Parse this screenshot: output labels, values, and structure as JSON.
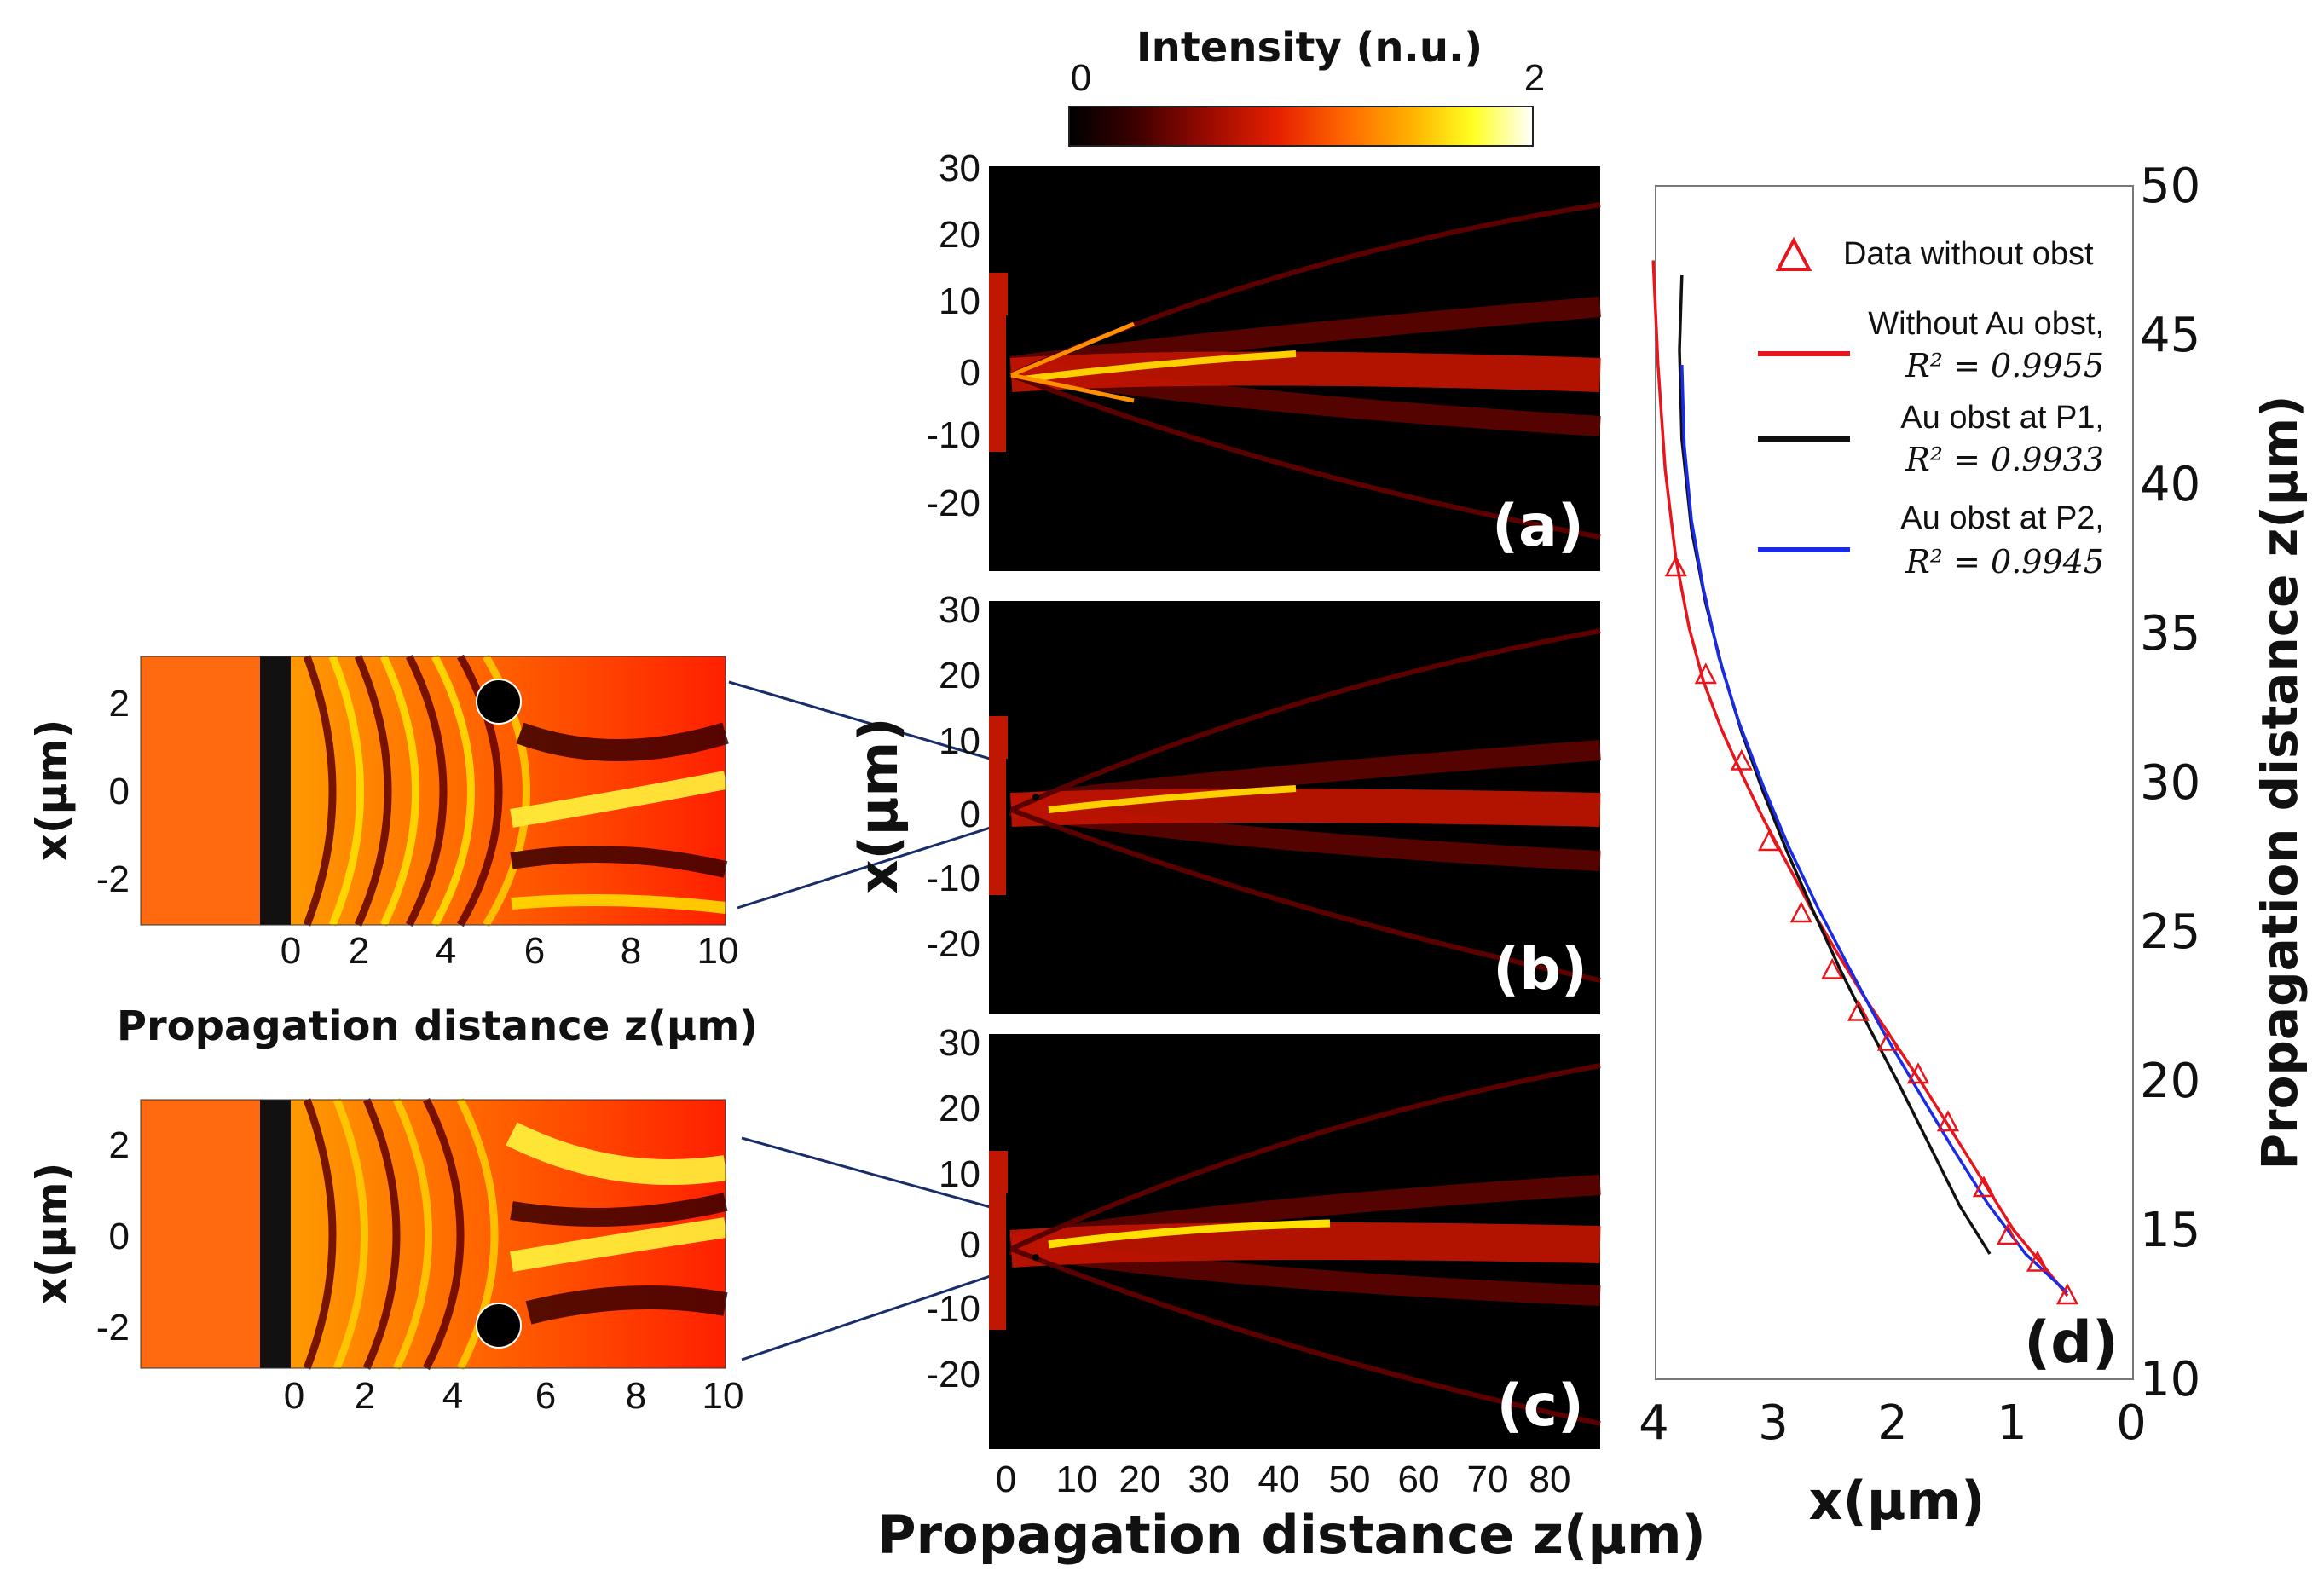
{
  "colorbar": {
    "title": "Intensity (n.u.)",
    "min_label": "0",
    "max_label": "2",
    "stops": [
      "#000000",
      "#3a0000",
      "#9a0a00",
      "#e62000",
      "#ff6a00",
      "#ffb200",
      "#ffff20",
      "#ffffff"
    ]
  },
  "inset_top": {
    "y_axis_label": "x(μm)",
    "y_ticks": [
      "2",
      "0",
      "-2"
    ],
    "x_ticks": [
      "0",
      "2",
      "4",
      "6",
      "8",
      "10"
    ],
    "x_axis_label": "Propagation distance z(μm)",
    "obstacle_x_um": 2
  },
  "inset_bottom": {
    "y_axis_label": "x(μm)",
    "y_ticks": [
      "2",
      "0",
      "-2"
    ],
    "x_ticks": [
      "0",
      "2",
      "4",
      "6",
      "8",
      "10"
    ],
    "obstacle_x_um": -2
  },
  "maps": {
    "y_axis_label": "x(μm)",
    "x_axis_label": "Propagation distance z(μm)",
    "y_ticks": [
      "30",
      "20",
      "10",
      "0",
      "-10",
      "-20"
    ],
    "x_ticks": [
      "0",
      "10",
      "20",
      "30",
      "40",
      "50",
      "60",
      "70",
      "80"
    ],
    "panel_a_label": "(a)",
    "panel_b_label": "(b)",
    "panel_c_label": "(c)"
  },
  "chart_data": {
    "type": "line",
    "panel_label": "(d)",
    "xlabel": "x(μm)",
    "ylabel": "Propagation distance z(μm)",
    "xlim": [
      4,
      0
    ],
    "ylim": [
      10,
      50
    ],
    "x_ticks": [
      "4",
      "3",
      "2",
      "1",
      "0"
    ],
    "y_ticks": [
      "50",
      "45",
      "40",
      "35",
      "30",
      "25",
      "20",
      "15",
      "10"
    ],
    "legend": {
      "data_label": "Data without obst",
      "series_labels": [
        {
          "line1": "Without Au obst,",
          "r2": "R² = 0.9955"
        },
        {
          "line1": "Au obst at P1,",
          "r2": "R² = 0.9933"
        },
        {
          "line1": "Au obst at P2,",
          "r2": "R² = 0.9945"
        }
      ]
    },
    "scatter": {
      "name": "Data without obst",
      "color": "#e8161c",
      "x": [
        3.83,
        3.58,
        3.28,
        3.05,
        2.78,
        2.52,
        2.3,
        2.05,
        1.8,
        1.55,
        1.25,
        1.05,
        0.8,
        0.55
      ],
      "y": [
        37.2,
        33.6,
        30.7,
        28.0,
        25.6,
        23.7,
        22.3,
        21.3,
        20.2,
        18.6,
        16.4,
        14.8,
        13.9,
        12.8
      ]
    },
    "series": [
      {
        "name": "Without Au obst",
        "color": "#e8161c",
        "x": [
          4.02,
          3.98,
          3.92,
          3.83,
          3.72,
          3.6,
          3.45,
          3.28,
          3.1,
          2.9,
          2.7,
          2.48,
          2.25,
          2.0,
          1.75,
          1.5,
          1.25,
          1.0,
          0.75,
          0.55
        ],
        "y": [
          47.5,
          44.0,
          40.5,
          37.5,
          35.2,
          33.4,
          31.8,
          30.3,
          28.8,
          27.3,
          25.8,
          24.3,
          22.8,
          21.3,
          19.8,
          18.2,
          16.6,
          15.0,
          13.8,
          12.8
        ]
      },
      {
        "name": "Au obst at P1",
        "color": "#111111",
        "x": [
          3.78,
          3.8,
          3.78,
          3.7,
          3.58,
          3.44,
          3.28,
          3.1,
          2.9,
          2.68,
          2.45,
          2.2,
          1.95,
          1.7,
          1.45,
          1.2
        ],
        "y": [
          47.0,
          44.5,
          41.5,
          38.5,
          36.0,
          33.8,
          31.7,
          29.7,
          27.7,
          25.7,
          23.7,
          21.7,
          19.8,
          17.8,
          15.8,
          14.2
        ]
      },
      {
        "name": "Au obst at P2",
        "color": "#1a2be8",
        "x": [
          3.78,
          3.76,
          3.7,
          3.6,
          3.47,
          3.3,
          3.1,
          2.88,
          2.64,
          2.38,
          2.1,
          1.82,
          1.52,
          1.22,
          0.9,
          0.55
        ],
        "y": [
          44.0,
          41.3,
          38.8,
          36.5,
          34.2,
          32.0,
          29.9,
          27.8,
          25.8,
          23.8,
          21.7,
          19.8,
          17.8,
          15.9,
          14.2,
          12.9
        ]
      }
    ]
  }
}
